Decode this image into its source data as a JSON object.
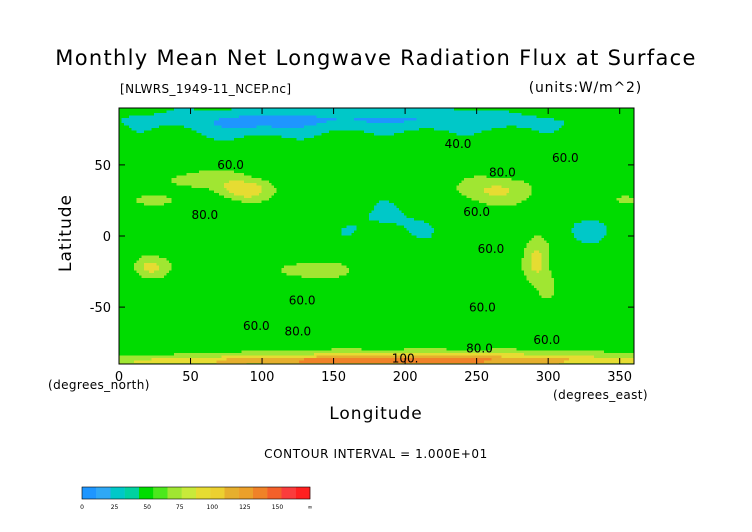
{
  "figure": {
    "title": "Monthly Mean Net Longwave Radiation Flux at Surface",
    "subtitle": "[NLWRS_1949-11_NCEP.nc]",
    "units": "(units:W/m^2)",
    "contour_interval": "CONTOUR INTERVAL = 1.000E+01",
    "xlabel_note": "(degrees_east)",
    "ylabel_note": "(degrees_north)"
  },
  "chart_data": {
    "type": "heatmap",
    "title": "Monthly Mean Net Longwave Radiation Flux at Surface",
    "xlabel": "Longitude",
    "ylabel": "Latitude",
    "xlim": [
      0,
      360
    ],
    "ylim": [
      -90,
      90
    ],
    "x_ticks": [
      0,
      50,
      100,
      150,
      200,
      250,
      300,
      350
    ],
    "y_ticks": [
      -50,
      0,
      50
    ],
    "grid": false,
    "contour_labels": [
      {
        "text": "40.0",
        "lon": 237,
        "lat": 62
      },
      {
        "text": "60.0",
        "lon": 312,
        "lat": 52
      },
      {
        "text": "60.0",
        "lon": 78,
        "lat": 47
      },
      {
        "text": "80.0",
        "lon": 268,
        "lat": 42
      },
      {
        "text": "80.0",
        "lon": 60,
        "lat": 12
      },
      {
        "text": "60.0",
        "lon": 250,
        "lat": 14
      },
      {
        "text": "60.0",
        "lon": 260,
        "lat": -12
      },
      {
        "text": "60.0",
        "lon": 128,
        "lat": -48
      },
      {
        "text": "60.0",
        "lon": 254,
        "lat": -53
      },
      {
        "text": "60.0",
        "lon": 96,
        "lat": -66
      },
      {
        "text": "80.0",
        "lon": 125,
        "lat": -70
      },
      {
        "text": "80.0",
        "lon": 252,
        "lat": -82
      },
      {
        "text": "60.0",
        "lon": 299,
        "lat": -76
      },
      {
        "text": "100.",
        "lon": 200,
        "lat": -89
      }
    ],
    "colorbar": {
      "labels": [
        "0",
        "25",
        "50",
        "75",
        "100",
        "125",
        "150",
        "∞"
      ],
      "colors": [
        "#1e96ff",
        "#00c8c8",
        "#00dc00",
        "#a0e632",
        "#e6dc32",
        "#e6af2d",
        "#f08228",
        "#fa3c3c"
      ]
    }
  }
}
